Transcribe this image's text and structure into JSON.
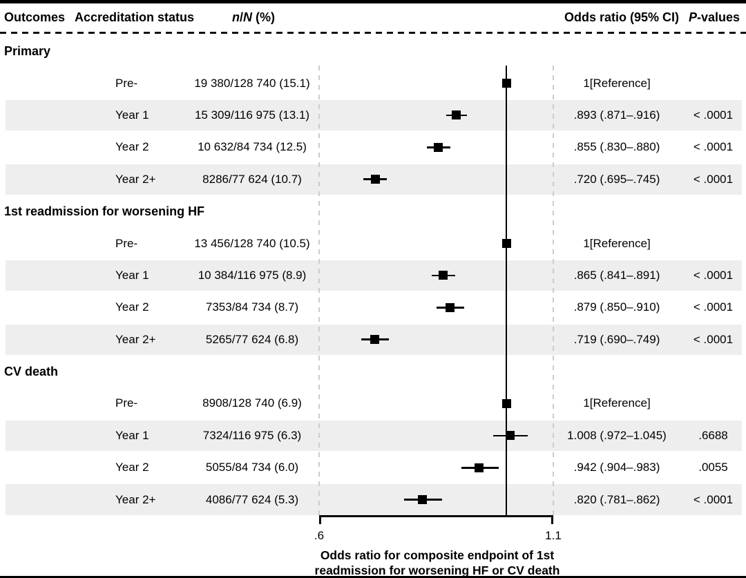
{
  "header": {
    "outcomes": "Outcomes",
    "accreditation": "Accreditation status",
    "nN": {
      "n": "n",
      "slash": "/",
      "N": "N",
      "suffix": " (%)"
    },
    "odds_ratio": "Odds ratio (95% CI)",
    "p": {
      "italic": "P",
      "suffix": "-values"
    }
  },
  "sections": [
    {
      "label": "Primary",
      "rows": [
        {
          "status": "Pre-",
          "n_over_N": "19 380/128 740 (15.1)",
          "or_ci": "1[Reference]",
          "p_value": ""
        },
        {
          "status": "Year 1",
          "n_over_N": "15 309/116 975 (13.1)",
          "or_ci": ".893 (.871–.916)",
          "p_value": "< .0001"
        },
        {
          "status": "Year 2",
          "n_over_N": "10 632/84 734 (12.5)",
          "or_ci": ".855 (.830–.880)",
          "p_value": "< .0001"
        },
        {
          "status": "Year 2+",
          "n_over_N": "8286/77 624 (10.7)",
          "or_ci": ".720 (.695–.745)",
          "p_value": "< .0001"
        }
      ]
    },
    {
      "label": "1st readmission for worsening HF",
      "rows": [
        {
          "status": "Pre-",
          "n_over_N": "13 456/128 740 (10.5)",
          "or_ci": "1[Reference]",
          "p_value": ""
        },
        {
          "status": "Year 1",
          "n_over_N": "10 384/116 975 (8.9)",
          "or_ci": ".865 (.841–.891)",
          "p_value": "< .0001"
        },
        {
          "status": "Year 2",
          "n_over_N": "7353/84 734 (8.7)",
          "or_ci": ".879 (.850–.910)",
          "p_value": "< .0001"
        },
        {
          "status": "Year 2+",
          "n_over_N": "5265/77 624 (6.8)",
          "or_ci": ".719 (.690–.749)",
          "p_value": "< .0001"
        }
      ]
    },
    {
      "label": "CV death",
      "rows": [
        {
          "status": "Pre-",
          "n_over_N": "8908/128 740 (6.9)",
          "or_ci": "1[Reference]",
          "p_value": ""
        },
        {
          "status": "Year 1",
          "n_over_N": "7324/116 975 (6.3)",
          "or_ci": "1.008 (.972–1.045)",
          "p_value": ".6688"
        },
        {
          "status": "Year 2",
          "n_over_N": "5055/84 734 (6.0)",
          "or_ci": ".942 (.904–.983)",
          "p_value": ".0055"
        },
        {
          "status": "Year 2+",
          "n_over_N": "4086/77 624 (5.3)",
          "or_ci": ".820 (.781–.862)",
          "p_value": "< .0001"
        }
      ]
    }
  ],
  "axis": {
    "tick_left": ".6",
    "tick_right": "1.1",
    "title_line1": "Odds ratio for composite endpoint of 1st",
    "title_line2": "readmission for worsening HF or CV death"
  },
  "colors": {
    "row_shading": "#eeeeee",
    "dashed_guide": "#cccccc",
    "marker": "#000000",
    "reference_line": "#000000"
  },
  "chart_data": {
    "type": "scatter",
    "subtype": "forest-plot",
    "x_axis": {
      "min": 0.6,
      "max": 1.1,
      "tick_values": [
        0.6,
        1.1
      ],
      "tick_labels": [
        ".6",
        "1.1"
      ],
      "label": "Odds ratio for composite endpoint of 1st readmission for worsening HF or CV death"
    },
    "reference_line_x": 1.0,
    "dashed_guides_x": [
      0.6,
      1.1
    ],
    "series": [
      {
        "group": "Primary",
        "points": [
          {
            "label": "Pre-",
            "or": 1.0,
            "ci_low": null,
            "ci_high": null,
            "is_reference": true
          },
          {
            "label": "Year 1",
            "or": 0.893,
            "ci_low": 0.871,
            "ci_high": 0.916,
            "p": "< .0001"
          },
          {
            "label": "Year 2",
            "or": 0.855,
            "ci_low": 0.83,
            "ci_high": 0.88,
            "p": "< .0001"
          },
          {
            "label": "Year 2+",
            "or": 0.72,
            "ci_low": 0.695,
            "ci_high": 0.745,
            "p": "< .0001"
          }
        ]
      },
      {
        "group": "1st readmission for worsening HF",
        "points": [
          {
            "label": "Pre-",
            "or": 1.0,
            "ci_low": null,
            "ci_high": null,
            "is_reference": true
          },
          {
            "label": "Year 1",
            "or": 0.865,
            "ci_low": 0.841,
            "ci_high": 0.891,
            "p": "< .0001"
          },
          {
            "label": "Year 2",
            "or": 0.879,
            "ci_low": 0.85,
            "ci_high": 0.91,
            "p": "< .0001"
          },
          {
            "label": "Year 2+",
            "or": 0.719,
            "ci_low": 0.69,
            "ci_high": 0.749,
            "p": "< .0001"
          }
        ]
      },
      {
        "group": "CV death",
        "points": [
          {
            "label": "Pre-",
            "or": 1.0,
            "ci_low": null,
            "ci_high": null,
            "is_reference": true
          },
          {
            "label": "Year 1",
            "or": 1.008,
            "ci_low": 0.972,
            "ci_high": 1.045,
            "p": ".6688"
          },
          {
            "label": "Year 2",
            "or": 0.942,
            "ci_low": 0.904,
            "ci_high": 0.983,
            "p": ".0055"
          },
          {
            "label": "Year 2+",
            "or": 0.82,
            "ci_low": 0.781,
            "ci_high": 0.862,
            "p": "< .0001"
          }
        ]
      }
    ]
  }
}
